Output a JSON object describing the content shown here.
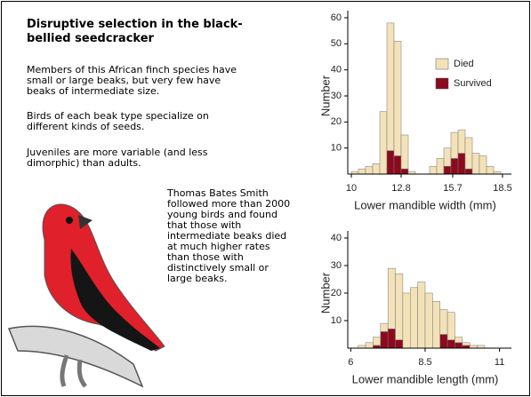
{
  "title": "Disruptive selection in the black-bellied seedcracker",
  "paragraphs": [
    "Members of this African finch species have small or large beaks, but very few have beaks of intermediate size.",
    "Birds of each beak type specialize on different kinds of seeds.",
    "Juveniles are more variable (and less dimorphic) than adults."
  ],
  "caption": "Thomas Bates Smith followed more than 2000 young birds and found that those with intermediate beaks died at much higher rates than those with distinctively small or large beaks.",
  "chart_data": [
    {
      "type": "histogram",
      "xlabel": "Lower mandible width (mm)",
      "ylabel": "Number",
      "bins": [
        10.0,
        10.4,
        10.8,
        11.2,
        11.6,
        12.0,
        12.4,
        12.8,
        13.2,
        13.6,
        14.0,
        14.4,
        14.8,
        15.2,
        15.6,
        16.0,
        16.4,
        16.8,
        17.2,
        17.6,
        18.0,
        18.4
      ],
      "series": [
        {
          "name": "Died",
          "color": "#f3e2b8",
          "values": [
            1,
            2,
            3,
            4,
            24,
            49,
            44,
            13,
            1,
            0,
            0,
            3,
            6,
            7,
            10,
            9,
            12,
            8,
            7,
            3,
            1
          ]
        },
        {
          "name": "Survived",
          "color": "#8b0a1e",
          "values": [
            0,
            0,
            0,
            0,
            0,
            9,
            7,
            2,
            0,
            0,
            0,
            0,
            0,
            3,
            6,
            8,
            2,
            0,
            0,
            0,
            0
          ]
        }
      ],
      "xlim": [
        9.8,
        19
      ],
      "xticks": [
        10,
        12.8,
        15.7,
        18.5
      ],
      "ylim": [
        0,
        60
      ],
      "yticks": [
        10,
        20,
        30,
        40,
        50,
        60
      ],
      "legend": "upper right"
    },
    {
      "type": "histogram",
      "xlabel": "Lower mandible length (mm)",
      "ylabel": "Number",
      "bins": [
        6.25,
        6.5,
        6.75,
        7.0,
        7.25,
        7.5,
        7.75,
        8.0,
        8.25,
        8.5,
        8.75,
        9.0,
        9.25,
        9.5,
        9.75,
        10.0,
        10.25,
        10.5
      ],
      "series": [
        {
          "color": "#f3e2b8",
          "values": [
            1,
            2,
            3,
            3,
            22,
            24,
            20,
            22,
            24,
            20,
            17,
            9,
            10,
            2,
            1,
            1,
            1
          ]
        },
        {
          "color": "#8b0a1e",
          "values": [
            0,
            0,
            1,
            6,
            7,
            3,
            0,
            0,
            0,
            0,
            0,
            5,
            3,
            2,
            1,
            0,
            0
          ]
        }
      ],
      "xlim": [
        5.9,
        11.4
      ],
      "xticks": [
        6,
        8.5,
        11
      ],
      "ylim": [
        0,
        40
      ],
      "yticks": [
        10,
        20,
        30,
        40
      ]
    }
  ]
}
